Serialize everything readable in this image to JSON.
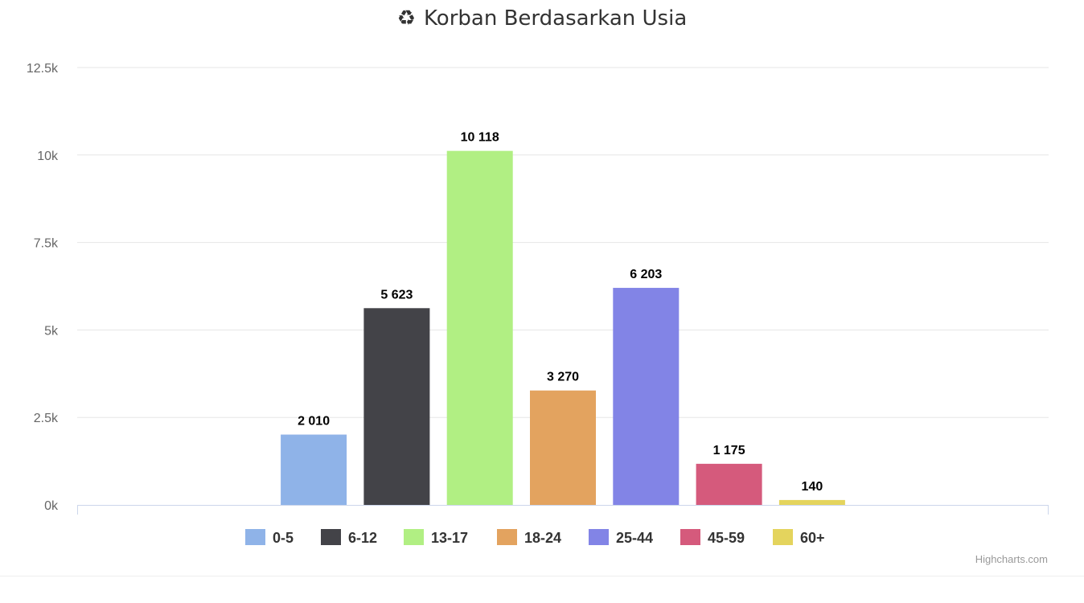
{
  "chart_data": {
    "type": "bar",
    "title": "Korban Berdasarkan Usia",
    "title_icon": "recycle-icon",
    "xlabel": "",
    "ylabel": "",
    "ylim": [
      0,
      12500
    ],
    "y_ticks": [
      0,
      2500,
      5000,
      7500,
      10000,
      12500
    ],
    "y_tick_labels": [
      "0k",
      "2.5k",
      "5k",
      "7.5k",
      "10k",
      "12.5k"
    ],
    "grid": true,
    "legend_position": "bottom-center",
    "series": [
      {
        "name": "0-5",
        "value": 2010,
        "label": "2 010",
        "color": "#8fb3e8"
      },
      {
        "name": "6-12",
        "value": 5623,
        "label": "5 623",
        "color": "#434348"
      },
      {
        "name": "13-17",
        "value": 10118,
        "label": "10 118",
        "color": "#b1ef83"
      },
      {
        "name": "18-24",
        "value": 3270,
        "label": "3 270",
        "color": "#e3a35f"
      },
      {
        "name": "25-44",
        "value": 6203,
        "label": "6 203",
        "color": "#8284e6"
      },
      {
        "name": "45-59",
        "value": 1175,
        "label": "1 175",
        "color": "#d55a7c"
      },
      {
        "name": "60+",
        "value": 140,
        "label": "140",
        "color": "#e4d45d"
      }
    ]
  },
  "credits": "Highcharts.com"
}
